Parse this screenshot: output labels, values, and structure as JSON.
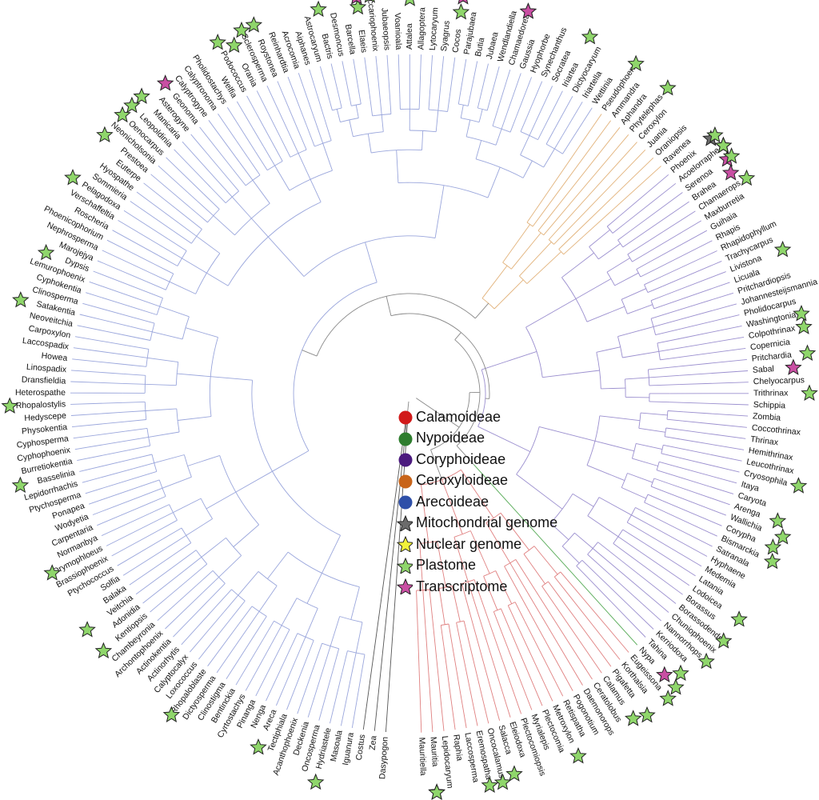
{
  "colors": {
    "calamoideae": "#e08080",
    "nypoideae": "#55aa55",
    "coryphoideae": "#9b8fcf",
    "ceroxyloideae": "#e2b27a",
    "arecoideae": "#9aa6dc",
    "outgroup": "#555555",
    "legend_calamoideae": "#d11a1a",
    "legend_nypoideae": "#2e7d2e",
    "legend_coryphoideae": "#4b1a7e",
    "legend_ceroxyloideae": "#c8641a",
    "legend_arecoideae": "#2e4fa8",
    "star_mito": "#6b6b6b",
    "star_nuclear": "#f2f23a",
    "star_plastome": "#8fd66b",
    "star_transcriptome": "#c94fa3"
  },
  "legend": [
    {
      "label": "Calamoideae",
      "shape": "circle",
      "color_key": "legend_calamoideae"
    },
    {
      "label": "Nypoideae",
      "shape": "circle",
      "color_key": "legend_nypoideae"
    },
    {
      "label": "Coryphoideae",
      "shape": "circle",
      "color_key": "legend_coryphoideae"
    },
    {
      "label": "Ceroxyloideae",
      "shape": "circle",
      "color_key": "legend_ceroxyloideae"
    },
    {
      "label": "Arecoideae",
      "shape": "circle",
      "color_key": "legend_arecoideae"
    },
    {
      "label": "Mitochondrial genome",
      "shape": "star",
      "color_key": "star_mito"
    },
    {
      "label": "Nuclear genome",
      "shape": "star",
      "color_key": "star_nuclear"
    },
    {
      "label": "Plastome",
      "shape": "star",
      "color_key": "star_plastome"
    },
    {
      "label": "Transcriptome",
      "shape": "star",
      "color_key": "star_transcriptome"
    }
  ],
  "groups": [
    {
      "key": "outgroup",
      "taxa": [
        {
          "name": "Dasypogon"
        },
        {
          "name": "Zea"
        },
        {
          "name": "Costus"
        }
      ]
    },
    {
      "key": "arecoideae",
      "taxa": [
        {
          "name": "Iguanura"
        },
        {
          "name": "Masoala"
        },
        {
          "name": "Hydriastele",
          "stars": [
            "P"
          ]
        },
        {
          "name": "Oncosperma"
        },
        {
          "name": "Deckenia"
        },
        {
          "name": "Acanthophoenix"
        },
        {
          "name": "Tectiphiala"
        },
        {
          "name": "Areca",
          "stars": [
            "P"
          ]
        },
        {
          "name": "Nenga"
        },
        {
          "name": "Pinanga"
        },
        {
          "name": "Cyrtostachys"
        },
        {
          "name": "Bentinckia"
        },
        {
          "name": "Clinostigma"
        },
        {
          "name": "Dictyosperma"
        },
        {
          "name": "Rhopaloblaste",
          "stars": [
            "P"
          ]
        },
        {
          "name": "Loxococcus"
        },
        {
          "name": "Calyptocalyx"
        },
        {
          "name": "Actinorhytis"
        },
        {
          "name": "Actinokentia"
        },
        {
          "name": "Archontophoenix"
        },
        {
          "name": "Chambeyronia"
        },
        {
          "name": "Kentiopsis",
          "stars": [
            "P"
          ]
        },
        {
          "name": "Adonidia"
        },
        {
          "name": "Veitchia",
          "stars": [
            "P"
          ]
        },
        {
          "name": "Balaka"
        },
        {
          "name": "Solfia"
        },
        {
          "name": "Ptychococcus"
        },
        {
          "name": "Brassiophoenix"
        },
        {
          "name": "Drymophloeus",
          "stars": [
            "P"
          ]
        },
        {
          "name": "Normanbya"
        },
        {
          "name": "Carpentaria"
        },
        {
          "name": "Wodyetia"
        },
        {
          "name": "Ponapea"
        },
        {
          "name": "Ptychosperma"
        },
        {
          "name": "Lepidorrhachis"
        },
        {
          "name": "Basselinia",
          "stars": [
            "P"
          ]
        },
        {
          "name": "Burretiokentia"
        },
        {
          "name": "Cyphophoenix"
        },
        {
          "name": "Cyphosperma"
        },
        {
          "name": "Physokentia"
        },
        {
          "name": "Hedyscepe"
        },
        {
          "name": "Rhopalostylis",
          "stars": [
            "P"
          ]
        },
        {
          "name": "Heterospathe"
        },
        {
          "name": "Dransfieldia"
        },
        {
          "name": "Linospadix"
        },
        {
          "name": "Howea"
        },
        {
          "name": "Laccospadix"
        },
        {
          "name": "Carpoxylon"
        },
        {
          "name": "Neoveitchia"
        },
        {
          "name": "Satakentia",
          "stars": [
            "P"
          ]
        },
        {
          "name": "Clinosperma"
        },
        {
          "name": "Cyphokentia"
        },
        {
          "name": "Lemurophoenix"
        },
        {
          "name": "Dypsis",
          "stars": [
            "P"
          ]
        },
        {
          "name": "Marojejya"
        },
        {
          "name": "Nephrosperma"
        },
        {
          "name": "Phoenicophorium"
        },
        {
          "name": "Roscheria"
        },
        {
          "name": "Verschaffeltia"
        },
        {
          "name": "Pelagodoxa",
          "stars": [
            "P"
          ]
        },
        {
          "name": "Sommieria"
        },
        {
          "name": "Hyospathe"
        },
        {
          "name": "Euterpe"
        },
        {
          "name": "Prestoea",
          "stars": [
            "P"
          ]
        },
        {
          "name": "Neonicholsonia"
        },
        {
          "name": "Oenocarpus",
          "stars": [
            "P"
          ]
        },
        {
          "name": "Leopoldinia",
          "stars": [
            "P"
          ]
        },
        {
          "name": "Manicaria",
          "stars": [
            "P"
          ]
        },
        {
          "name": "Asterogyne"
        },
        {
          "name": "Geonoma",
          "stars": [
            "T"
          ]
        },
        {
          "name": "Calyptrogyne"
        },
        {
          "name": "Calyptronoma"
        },
        {
          "name": "Pholidostachys"
        },
        {
          "name": "Welfia"
        },
        {
          "name": "Podococcus",
          "stars": [
            "P"
          ]
        },
        {
          "name": "Orania",
          "stars": [
            "P"
          ]
        },
        {
          "name": "Sclerosperma",
          "stars": [
            "P"
          ]
        },
        {
          "name": "Roystonea",
          "stars": [
            "P"
          ]
        },
        {
          "name": "Reinhardtia"
        },
        {
          "name": "Acrocomia"
        },
        {
          "name": "Aiphanes"
        },
        {
          "name": "Astrocaryum"
        },
        {
          "name": "Bactris",
          "stars": [
            "P"
          ]
        },
        {
          "name": "Desmoncus"
        },
        {
          "name": "Barcella"
        },
        {
          "name": "Elaeis",
          "stars": [
            "P",
            "N",
            "T"
          ]
        },
        {
          "name": "Beccariophoenix",
          "stars": [
            "P"
          ]
        },
        {
          "name": "Jubaeopsis"
        },
        {
          "name": "Voanioala"
        },
        {
          "name": "Attalea",
          "stars": [
            "P"
          ]
        },
        {
          "name": "Allagoptera"
        },
        {
          "name": "Lytocaryum"
        },
        {
          "name": "Syagrus"
        },
        {
          "name": "Cocos",
          "stars": [
            "P",
            "T"
          ]
        },
        {
          "name": "Parajubaea"
        },
        {
          "name": "Butia"
        },
        {
          "name": "Jubaea"
        },
        {
          "name": "Wendlandiella"
        },
        {
          "name": "Chamaedorea",
          "stars": [
            "P",
            "T"
          ]
        },
        {
          "name": "Gaussia"
        },
        {
          "name": "Hyophorbe"
        },
        {
          "name": "Synechanthus"
        },
        {
          "name": "Socratea"
        },
        {
          "name": "Iriartea",
          "stars": [
            "P"
          ]
        },
        {
          "name": "Dictyocaryum"
        },
        {
          "name": "Iriartella"
        },
        {
          "name": "Wettinia"
        }
      ]
    },
    {
      "key": "ceroxyloideae",
      "taxa": [
        {
          "name": "Pseudophoenix",
          "stars": [
            "P"
          ]
        },
        {
          "name": "Ammandra"
        },
        {
          "name": "Aphandra"
        },
        {
          "name": "Phytelephas",
          "stars": [
            "P"
          ]
        },
        {
          "name": "Ceroxylon"
        },
        {
          "name": "Juania"
        },
        {
          "name": "Oraniopsis"
        },
        {
          "name": "Ravenea"
        }
      ]
    },
    {
      "key": "coryphoideae",
      "taxa": [
        {
          "name": "Phoenix",
          "stars": [
            "M",
            "P"
          ]
        },
        {
          "name": "Acoelorraphe",
          "stars": [
            "P",
            "T",
            "N",
            "P"
          ]
        },
        {
          "name": "Serenoa",
          "stars": [
            "T",
            "P"
          ]
        },
        {
          "name": "Brahea",
          "stars": [
            "T"
          ]
        },
        {
          "name": "Chamaerops",
          "stars": [
            "P"
          ]
        },
        {
          "name": "Maxburretia"
        },
        {
          "name": "Guihaia"
        },
        {
          "name": "Rhapis"
        },
        {
          "name": "Rhapidophyllum"
        },
        {
          "name": "Trachycarpus"
        },
        {
          "name": "Livistona",
          "stars": [
            "P"
          ]
        },
        {
          "name": "Licuala"
        },
        {
          "name": "Pritchardiopsis"
        },
        {
          "name": "Johannesteijsmannia"
        },
        {
          "name": "Pholidocarpus"
        },
        {
          "name": "Washingtonia",
          "stars": [
            "P"
          ]
        },
        {
          "name": "Colpothrinax",
          "stars": [
            "P"
          ]
        },
        {
          "name": "Copernicia"
        },
        {
          "name": "Pritchardia",
          "stars": [
            "P"
          ]
        },
        {
          "name": "Sabal",
          "stars": [
            "T"
          ]
        },
        {
          "name": "Chelyocarpus"
        },
        {
          "name": "Trithrinax",
          "stars": [
            "P"
          ]
        },
        {
          "name": "Schippia"
        },
        {
          "name": "Zombia"
        },
        {
          "name": "Coccothrinax"
        },
        {
          "name": "Thrinax"
        },
        {
          "name": "Hemithrinax"
        },
        {
          "name": "Leucothrinax"
        },
        {
          "name": "Cryosophila",
          "stars": [
            "P"
          ]
        },
        {
          "name": "Itaya"
        },
        {
          "name": "Caryota"
        },
        {
          "name": "Arenga",
          "stars": [
            "P"
          ]
        },
        {
          "name": "Wallichia",
          "stars": [
            "P"
          ]
        },
        {
          "name": "Corypha",
          "stars": [
            "P"
          ]
        },
        {
          "name": "Bismarckia",
          "stars": [
            "P"
          ]
        },
        {
          "name": "Satranala"
        },
        {
          "name": "Hyphaene"
        },
        {
          "name": "Medemia"
        },
        {
          "name": "Latania"
        },
        {
          "name": "Lodoicea",
          "stars": [
            "P"
          ]
        },
        {
          "name": "Borassus"
        },
        {
          "name": "Borassodendron",
          "stars": [
            "P"
          ]
        },
        {
          "name": "Chuniophoenix"
        },
        {
          "name": "Nannorrhops",
          "stars": [
            "P"
          ]
        },
        {
          "name": "Kerriodoxa"
        },
        {
          "name": "Tahina",
          "stars": [
            "P"
          ]
        }
      ]
    },
    {
      "key": "nypoideae",
      "taxa": [
        {
          "name": "Nypa",
          "stars": [
            "T",
            "P"
          ]
        }
      ]
    },
    {
      "key": "calamoideae",
      "taxa": [
        {
          "name": "Eugeissona",
          "stars": [
            "P"
          ]
        },
        {
          "name": "Korthalsia"
        },
        {
          "name": "Pigafetta",
          "stars": [
            "P"
          ]
        },
        {
          "name": "Calamus",
          "stars": [
            "P"
          ]
        },
        {
          "name": "Ceratolobus"
        },
        {
          "name": "Daemonorops"
        },
        {
          "name": "Pogonotium"
        },
        {
          "name": "Retispatha"
        },
        {
          "name": "Metroxylon",
          "stars": [
            "P"
          ]
        },
        {
          "name": "Plectocomia"
        },
        {
          "name": "Myrialepis"
        },
        {
          "name": "Plectocomiopsis"
        },
        {
          "name": "Eleiodoxa"
        },
        {
          "name": "Salacca",
          "stars": [
            "P"
          ]
        },
        {
          "name": "Oncocalamus",
          "stars": [
            "P"
          ]
        },
        {
          "name": "Eremospatha",
          "stars": [
            "P"
          ]
        },
        {
          "name": "Laccosperma"
        },
        {
          "name": "Raphia"
        },
        {
          "name": "Lepidocaryum"
        },
        {
          "name": "Mauritia",
          "stars": [
            "T",
            "P"
          ]
        },
        {
          "name": "Mauritiella"
        }
      ]
    }
  ]
}
